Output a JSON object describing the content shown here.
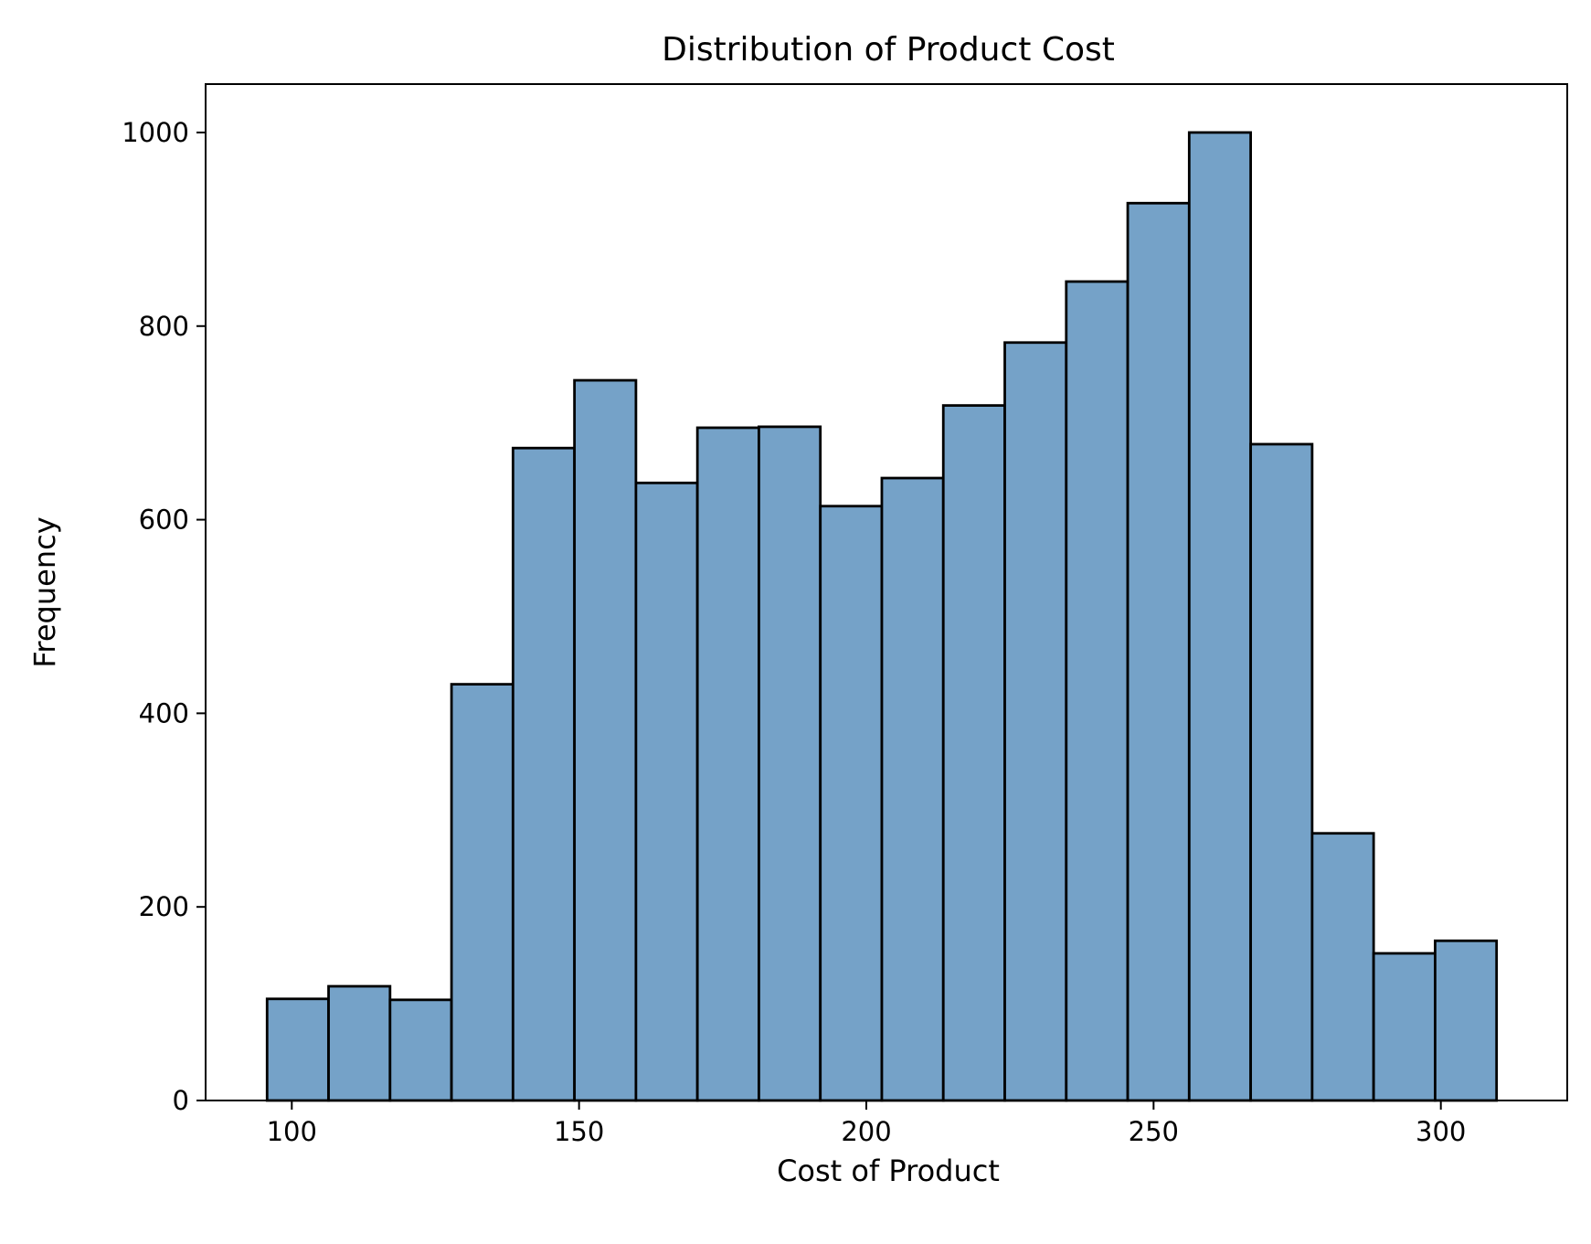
{
  "chart_data": {
    "type": "bar",
    "subtype": "histogram",
    "title": "Distribution of Product Cost",
    "xlabel": "Cost of Product",
    "ylabel": "Frequency",
    "xlim": [
      85,
      322
    ],
    "ylim": [
      0,
      1050
    ],
    "xticks": [
      100,
      150,
      200,
      250,
      300
    ],
    "yticks": [
      0,
      200,
      400,
      600,
      800,
      1000
    ],
    "bin_edges": [
      95.7,
      106.4,
      117.1,
      127.8,
      138.5,
      149.2,
      159.9,
      170.6,
      181.3,
      192.0,
      202.7,
      213.4,
      224.1,
      234.8,
      245.5,
      256.2,
      266.9,
      277.6,
      288.3,
      299.0,
      309.7
    ],
    "values": [
      105,
      118,
      104,
      430,
      674,
      744,
      638,
      695,
      696,
      614,
      643,
      718,
      783,
      846,
      927,
      1000,
      678,
      276,
      152,
      165
    ],
    "bar_color": "#75a2c8",
    "edge_color": "#000000",
    "grid": false,
    "legend": "none"
  }
}
